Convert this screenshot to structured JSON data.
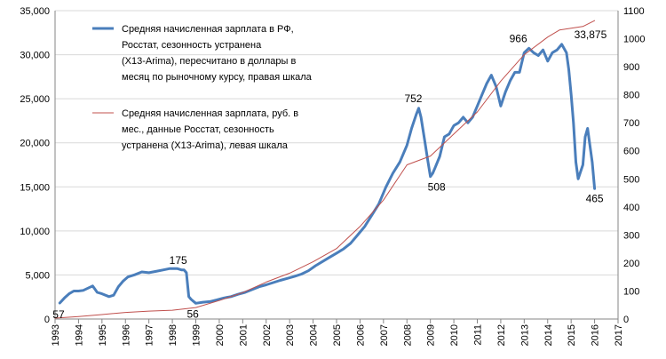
{
  "chart_data": {
    "type": "line",
    "x_ticks": [
      "1993",
      "1994",
      "1995",
      "1996",
      "1997",
      "1998",
      "1999",
      "2000",
      "2001",
      "2002",
      "2003",
      "2004",
      "2005",
      "2006",
      "2007",
      "2008",
      "2009",
      "2010",
      "2011",
      "2012",
      "2013",
      "2014",
      "2015",
      "2016",
      "2017"
    ],
    "y_left": {
      "ticks": [
        "0",
        "5,000",
        "10,000",
        "15,000",
        "20,000",
        "25,000",
        "30,000",
        "35,000"
      ],
      "ylim": [
        0,
        35000
      ]
    },
    "y_right": {
      "ticks": [
        "0",
        "100",
        "200",
        "300",
        "400",
        "500",
        "600",
        "700",
        "800",
        "900",
        "1000",
        "1100"
      ],
      "ylim": [
        0,
        1100
      ]
    },
    "grid": "horizontal",
    "series": [
      {
        "name": "Средняя  начисленная зарплата в РФ, Росстат, сезонность устранена (X13-Arima), пересчитано в доллары в месяц по рыночному курсу, правая шкала",
        "axis": "right",
        "color": "#4a7ebb",
        "x": [
          1993.2,
          1993.4,
          1993.6,
          1993.8,
          1994.0,
          1994.2,
          1994.4,
          1994.6,
          1994.8,
          1995.0,
          1995.3,
          1995.5,
          1995.7,
          1995.9,
          1996.1,
          1996.4,
          1996.7,
          1997.0,
          1997.3,
          1997.6,
          1997.9,
          1998.2,
          1998.4,
          1998.5,
          1998.6,
          1998.7,
          1998.8,
          1999.0,
          1999.3,
          1999.6,
          1999.9,
          2000.2,
          2000.5,
          2000.8,
          2001.1,
          2001.4,
          2001.7,
          2002.0,
          2002.3,
          2002.6,
          2002.9,
          2003.2,
          2003.5,
          2003.8,
          2004.1,
          2004.4,
          2004.7,
          2005.0,
          2005.3,
          2005.6,
          2005.9,
          2006.2,
          2006.5,
          2006.8,
          2007.1,
          2007.4,
          2007.7,
          2008.0,
          2008.2,
          2008.4,
          2008.5,
          2008.6,
          2008.75,
          2008.9,
          2009.0,
          2009.1,
          2009.2,
          2009.4,
          2009.6,
          2009.8,
          2010.0,
          2010.2,
          2010.4,
          2010.6,
          2010.8,
          2011.0,
          2011.2,
          2011.4,
          2011.6,
          2011.8,
          2012.0,
          2012.2,
          2012.4,
          2012.6,
          2012.8,
          2013.0,
          2013.2,
          2013.4,
          2013.6,
          2013.8,
          2014.0,
          2014.2,
          2014.4,
          2014.6,
          2014.8,
          2014.9,
          2015.0,
          2015.1,
          2015.2,
          2015.3,
          2015.5,
          2015.6,
          2015.7,
          2015.8,
          2015.9,
          2016.0
        ],
        "values": [
          57,
          75,
          90,
          100,
          100,
          102,
          110,
          118,
          95,
          90,
          80,
          85,
          115,
          135,
          150,
          158,
          168,
          165,
          170,
          175,
          180,
          180,
          175,
          175,
          165,
          80,
          70,
          56,
          60,
          62,
          68,
          75,
          80,
          88,
          95,
          105,
          115,
          122,
          130,
          138,
          145,
          152,
          160,
          172,
          190,
          205,
          220,
          235,
          250,
          270,
          300,
          330,
          370,
          410,
          470,
          520,
          560,
          620,
          680,
          730,
          752,
          720,
          640,
          560,
          508,
          520,
          540,
          580,
          650,
          660,
          690,
          700,
          720,
          700,
          720,
          760,
          800,
          840,
          870,
          830,
          760,
          810,
          850,
          880,
          880,
          950,
          966,
          950,
          940,
          960,
          920,
          950,
          960,
          980,
          950,
          890,
          800,
          700,
          560,
          500,
          550,
          650,
          680,
          620,
          560,
          465
        ]
      },
      {
        "name": "Средняя  начисленная зарплата, руб. в мес., данные Росстат, сезонность устранена (X13-Arima), левая шкала",
        "axis": "left",
        "color": "#c0504d",
        "x": [
          1993.0,
          1994.0,
          1995.0,
          1996.0,
          1997.0,
          1998.0,
          1999.0,
          2000.0,
          2001.0,
          2002.0,
          2003.0,
          2004.0,
          2005.0,
          2006.0,
          2007.0,
          2008.0,
          2009.0,
          2010.0,
          2011.0,
          2012.0,
          2013.0,
          2014.0,
          2014.5,
          2015.0,
          2015.5,
          2016.0
        ],
        "values": [
          100,
          280,
          500,
          750,
          900,
          1000,
          1300,
          2100,
          3000,
          4200,
          5200,
          6500,
          8000,
          10500,
          13500,
          17500,
          18500,
          21000,
          23500,
          27000,
          30000,
          32000,
          32800,
          33000,
          33200,
          33875
        ]
      }
    ],
    "annotations": [
      {
        "text": "57"
      },
      {
        "text": "175"
      },
      {
        "text": "56"
      },
      {
        "text": "752"
      },
      {
        "text": "508"
      },
      {
        "text": "966"
      },
      {
        "text": "33,875"
      },
      {
        "text": "465"
      }
    ]
  }
}
